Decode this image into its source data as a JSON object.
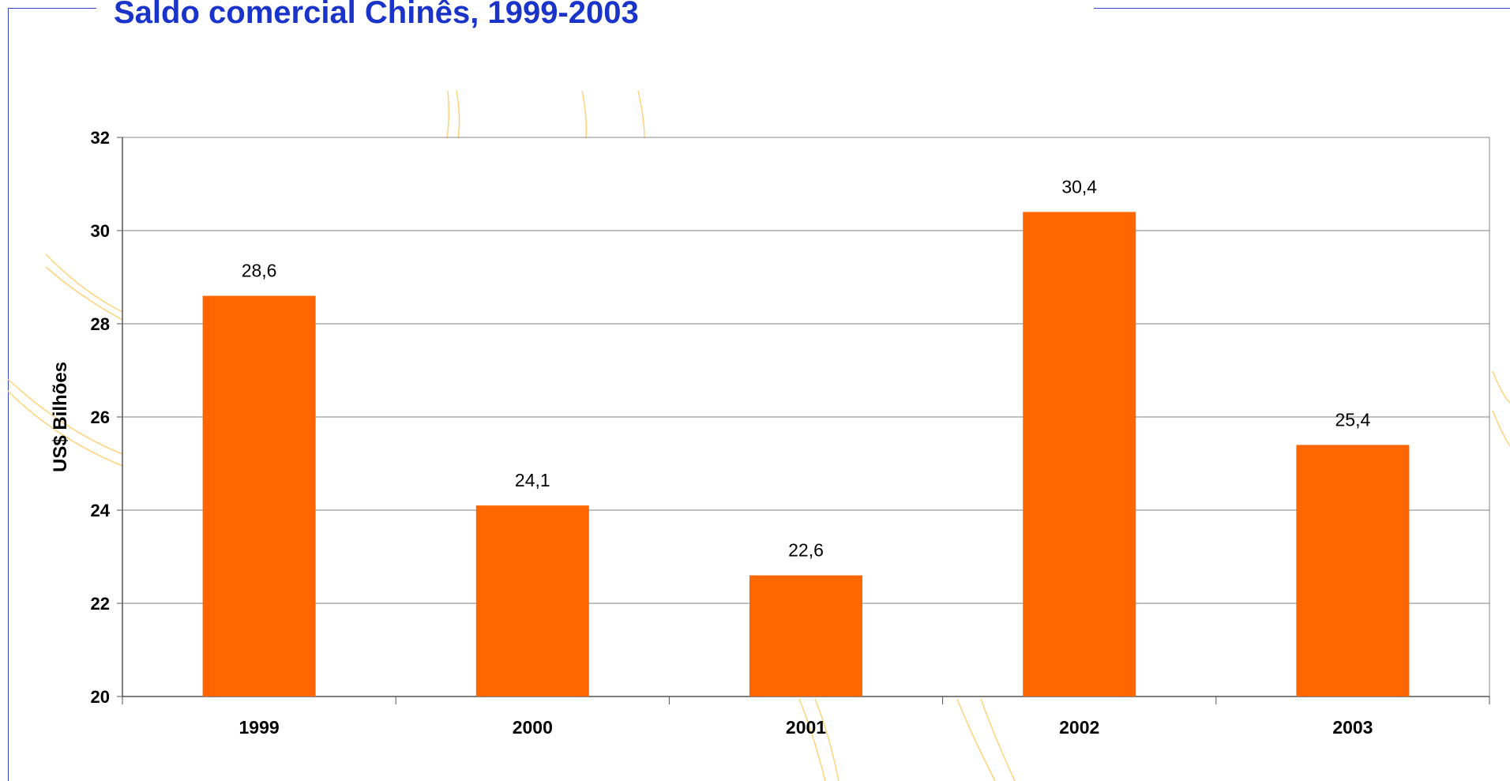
{
  "slide": {
    "title": "Saldo comercial Chinês, 1999-2003"
  },
  "chart_data": {
    "type": "bar",
    "title": "Saldo comercial Chinês, 1999-2003",
    "xlabel": "",
    "ylabel": "US$ Bilhões",
    "categories": [
      "1999",
      "2000",
      "2001",
      "2002",
      "2003"
    ],
    "values": [
      28.6,
      24.1,
      22.6,
      30.4,
      25.4
    ],
    "data_labels": [
      "28,6",
      "24,1",
      "22,6",
      "30,4",
      "25,4"
    ],
    "ylim": [
      20,
      32
    ],
    "yticks": [
      "20",
      "22",
      "24",
      "26",
      "28",
      "30",
      "32"
    ],
    "grid": true,
    "legend": "none",
    "colors": {
      "bar": "#ff6600",
      "grid": "#808080",
      "axis": "#555555",
      "title": "#1a34c9",
      "decor": "#ffd27a"
    }
  }
}
